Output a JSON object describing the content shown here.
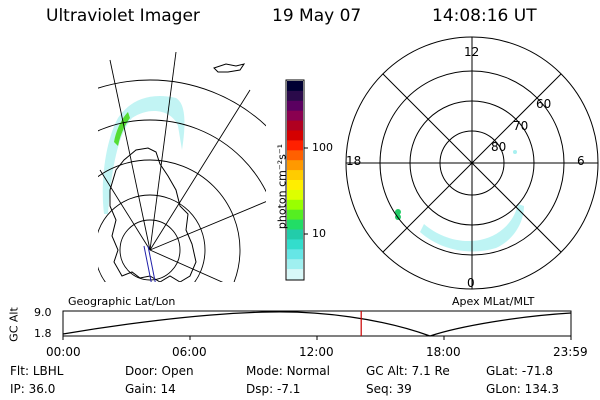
{
  "header": {
    "instrument": "Ultraviolet Imager",
    "date": "19 May 07",
    "time": "14:08:16 UT"
  },
  "colorbar": {
    "label": "photon cm⁻²s⁻¹",
    "ticks": [
      "100",
      "10"
    ],
    "colors": [
      "#000033",
      "#2a0a4a",
      "#5a0060",
      "#8a0050",
      "#b00020",
      "#d40000",
      "#ff2000",
      "#ff6000",
      "#ff9900",
      "#ffcc00",
      "#ffee00",
      "#ddff00",
      "#99ff00",
      "#55ee22",
      "#22dd66",
      "#22ccaa",
      "#33ddcc",
      "#66e6e6",
      "#a0f0f0",
      "#d8f8f8"
    ]
  },
  "polar_plot": {
    "mlt_labels": {
      "top": "12",
      "left": "18",
      "right": "6",
      "bottom": "0"
    },
    "lat_labels": [
      "60",
      "70",
      "80"
    ]
  },
  "map_labels": {
    "left": "Geographic Lat/Lon",
    "right": "Apex MLat/MLT"
  },
  "altitude_strip": {
    "axis_label": "GC Alt",
    "y_ticks": [
      "9.0",
      "1.8"
    ],
    "x_ticks": [
      "00:00",
      "06:00",
      "12:00",
      "18:00",
      "23:59"
    ],
    "current_time_fraction": 0.587
  },
  "info": {
    "row1": [
      {
        "label": "Flt:",
        "value": "LBHL"
      },
      {
        "label": "Door:",
        "value": "Open"
      },
      {
        "label": "Mode:",
        "value": "Normal"
      },
      {
        "label": "GC Alt:",
        "value": "7.1 Re"
      },
      {
        "label": "GLat:",
        "value": "-71.8"
      }
    ],
    "row2": [
      {
        "label": "IP:",
        "value": "36.0"
      },
      {
        "label": "Gain:",
        "value": "14"
      },
      {
        "label": "Dsp:",
        "value": "-7.1"
      },
      {
        "label": "Seq:",
        "value": "39"
      },
      {
        "label": "GLon:",
        "value": "134.3"
      }
    ]
  }
}
